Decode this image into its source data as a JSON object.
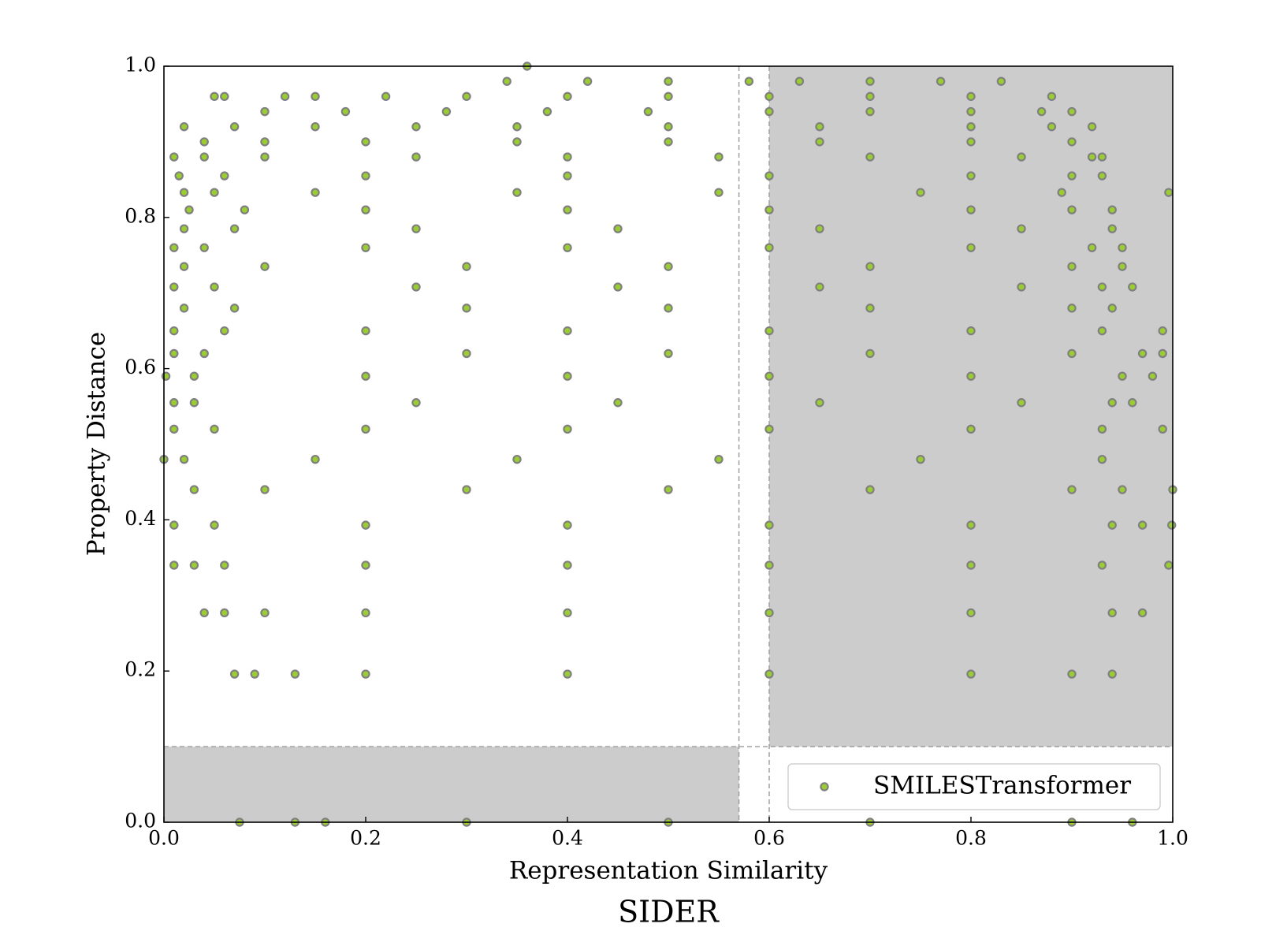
{
  "chart_data": {
    "type": "scatter",
    "title": "SIDER",
    "x_label": "Representation Similarity",
    "y_label": "Property Distance",
    "xlim": [
      0,
      1
    ],
    "ylim": [
      0,
      1
    ],
    "xticks": [
      {
        "value": 0,
        "label": "0.0"
      },
      {
        "value": 0.2,
        "label": "0.2"
      },
      {
        "value": 0.4,
        "label": "0.4"
      },
      {
        "value": 0.6,
        "label": "0.6"
      },
      {
        "value": 0.8,
        "label": "0.8"
      },
      {
        "value": 1,
        "label": "1.0"
      }
    ],
    "yticks": [
      {
        "value": 0,
        "label": "0.0"
      },
      {
        "value": 0.2,
        "label": "0.2"
      },
      {
        "value": 0.4,
        "label": "0.4"
      },
      {
        "value": 0.6,
        "label": "0.6"
      },
      {
        "value": 0.8,
        "label": "0.8"
      },
      {
        "value": 1,
        "label": "1.0"
      }
    ],
    "grid": false,
    "legend": "lower right",
    "shaded_regions": [
      {
        "xlim": [
          0.6,
          1
        ],
        "ylim": [
          0.1,
          1
        ]
      },
      {
        "xlim": [
          0,
          0.57
        ],
        "ylim": [
          0,
          0.1
        ]
      }
    ],
    "dashed_lines": {
      "x": [
        0.57,
        0.6
      ],
      "y": [
        0.1
      ]
    },
    "series": [
      {
        "name": "SMILESTransformer",
        "color": "#9acd32",
        "edge_color": "#808080",
        "x": [
          0.36,
          0.34,
          0.42,
          0.5,
          0.58,
          0.63,
          0.7,
          0.77,
          0.83,
          0.05,
          0.06,
          0.12,
          0.15,
          0.22,
          0.3,
          0.4,
          0.5,
          0.6,
          0.7,
          0.8,
          0.88,
          0.1,
          0.18,
          0.28,
          0.38,
          0.48,
          0.6,
          0.7,
          0.8,
          0.87,
          0.9,
          0.02,
          0.07,
          0.15,
          0.25,
          0.35,
          0.5,
          0.65,
          0.8,
          0.88,
          0.92,
          0.04,
          0.1,
          0.2,
          0.35,
          0.5,
          0.65,
          0.8,
          0.9,
          0.01,
          0.04,
          0.1,
          0.25,
          0.4,
          0.55,
          0.7,
          0.85,
          0.92,
          0.93,
          0.015,
          0.06,
          0.2,
          0.4,
          0.6,
          0.8,
          0.9,
          0.93,
          0.02,
          0.05,
          0.15,
          0.35,
          0.55,
          0.75,
          0.89,
          0.996,
          0.025,
          0.08,
          0.2,
          0.4,
          0.6,
          0.8,
          0.9,
          0.94,
          0.02,
          0.07,
          0.25,
          0.45,
          0.65,
          0.85,
          0.94,
          0.01,
          0.04,
          0.2,
          0.4,
          0.6,
          0.8,
          0.92,
          0.95,
          0.02,
          0.1,
          0.3,
          0.5,
          0.7,
          0.9,
          0.95,
          0.01,
          0.05,
          0.25,
          0.45,
          0.65,
          0.85,
          0.93,
          0.96,
          0.02,
          0.07,
          0.3,
          0.5,
          0.7,
          0.9,
          0.94,
          0.01,
          0.06,
          0.2,
          0.4,
          0.6,
          0.8,
          0.93,
          0.99,
          0.01,
          0.04,
          0.3,
          0.5,
          0.7,
          0.9,
          0.97,
          0.99,
          0.002,
          0.03,
          0.2,
          0.4,
          0.6,
          0.8,
          0.95,
          0.98,
          0.01,
          0.03,
          0.25,
          0.45,
          0.65,
          0.85,
          0.94,
          0.96,
          0.01,
          0.05,
          0.2,
          0.4,
          0.6,
          0.8,
          0.93,
          0.99,
          0.0,
          0.02,
          0.15,
          0.35,
          0.55,
          0.75,
          0.93,
          0.03,
          0.1,
          0.3,
          0.5,
          0.7,
          0.9,
          0.95,
          1.0,
          0.01,
          0.05,
          0.2,
          0.4,
          0.6,
          0.8,
          0.94,
          0.97,
          0.999,
          0.01,
          0.03,
          0.06,
          0.2,
          0.4,
          0.6,
          0.8,
          0.93,
          0.996,
          0.04,
          0.06,
          0.1,
          0.2,
          0.4,
          0.6,
          0.8,
          0.94,
          0.97,
          0.07,
          0.09,
          0.13,
          0.2,
          0.4,
          0.6,
          0.8,
          0.9,
          0.94,
          0.075,
          0.13,
          0.16,
          0.3,
          0.5,
          0.7,
          0.9,
          0.96
        ],
        "values": [
          1.0,
          0.98,
          0.98,
          0.98,
          0.98,
          0.98,
          0.98,
          0.98,
          0.98,
          0.96,
          0.96,
          0.96,
          0.96,
          0.96,
          0.96,
          0.96,
          0.96,
          0.96,
          0.96,
          0.96,
          0.96,
          0.94,
          0.94,
          0.94,
          0.94,
          0.94,
          0.94,
          0.94,
          0.94,
          0.94,
          0.94,
          0.92,
          0.92,
          0.92,
          0.92,
          0.92,
          0.92,
          0.92,
          0.92,
          0.92,
          0.92,
          0.9,
          0.9,
          0.9,
          0.9,
          0.9,
          0.9,
          0.9,
          0.9,
          0.88,
          0.88,
          0.88,
          0.88,
          0.88,
          0.88,
          0.88,
          0.88,
          0.88,
          0.88,
          0.855,
          0.855,
          0.855,
          0.855,
          0.855,
          0.855,
          0.855,
          0.855,
          0.833,
          0.833,
          0.833,
          0.833,
          0.833,
          0.833,
          0.833,
          0.833,
          0.81,
          0.81,
          0.81,
          0.81,
          0.81,
          0.81,
          0.81,
          0.81,
          0.785,
          0.785,
          0.785,
          0.785,
          0.785,
          0.785,
          0.785,
          0.76,
          0.76,
          0.76,
          0.76,
          0.76,
          0.76,
          0.76,
          0.76,
          0.735,
          0.735,
          0.735,
          0.735,
          0.735,
          0.735,
          0.735,
          0.708,
          0.708,
          0.708,
          0.708,
          0.708,
          0.708,
          0.708,
          0.708,
          0.68,
          0.68,
          0.68,
          0.68,
          0.68,
          0.68,
          0.68,
          0.65,
          0.65,
          0.65,
          0.65,
          0.65,
          0.65,
          0.65,
          0.65,
          0.62,
          0.62,
          0.62,
          0.62,
          0.62,
          0.62,
          0.62,
          0.62,
          0.59,
          0.59,
          0.59,
          0.59,
          0.59,
          0.59,
          0.59,
          0.59,
          0.555,
          0.555,
          0.555,
          0.555,
          0.555,
          0.555,
          0.555,
          0.555,
          0.52,
          0.52,
          0.52,
          0.52,
          0.52,
          0.52,
          0.52,
          0.52,
          0.48,
          0.48,
          0.48,
          0.48,
          0.48,
          0.48,
          0.48,
          0.44,
          0.44,
          0.44,
          0.44,
          0.44,
          0.44,
          0.44,
          0.44,
          0.393,
          0.393,
          0.393,
          0.393,
          0.393,
          0.393,
          0.393,
          0.393,
          0.393,
          0.34,
          0.34,
          0.34,
          0.34,
          0.34,
          0.34,
          0.34,
          0.34,
          0.34,
          0.277,
          0.277,
          0.277,
          0.277,
          0.277,
          0.277,
          0.277,
          0.277,
          0.277,
          0.196,
          0.196,
          0.196,
          0.196,
          0.196,
          0.196,
          0.196,
          0.196,
          0.196,
          0.0,
          0.0,
          0.0,
          0.0,
          0.0,
          0.0,
          0.0,
          0.0
        ]
      }
    ]
  }
}
